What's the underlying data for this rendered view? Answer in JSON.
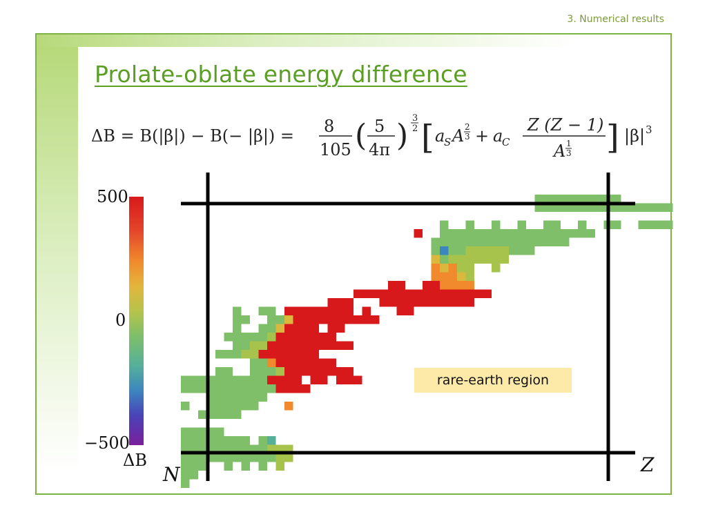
{
  "header": {
    "section_label": "3. Numerical results"
  },
  "slide": {
    "title": "Prolate-oblate energy difference",
    "formula": "ΔB = B(|β|) − B(−|β|) = 8/105 (5/4π)^(3/2) [a_S A^(2/3) + a_C Z(Z−1)/A^(1/3)] |β|^3"
  },
  "annotation": {
    "text": "rare-earth region"
  },
  "chart_data": {
    "type": "heatmap",
    "title": "",
    "xlabel": "Z",
    "ylabel": "N",
    "colorbar": {
      "label": "ΔB",
      "min": -500,
      "max": 500,
      "ticks": [
        "500",
        "0",
        "−500"
      ],
      "colors": [
        "#d7191c",
        "#f07a28",
        "#e8b83b",
        "#a7c34f",
        "#7fbf76",
        "#4fa9a8",
        "#3b6fc4",
        "#5b3fb8",
        "#7a1f9b"
      ]
    },
    "grid": false,
    "cells": [
      [
        "#6fbf6f",
        "r",
        ""
      ],
      [
        "#d7191c",
        "r",
        ""
      ]
    ]
  }
}
